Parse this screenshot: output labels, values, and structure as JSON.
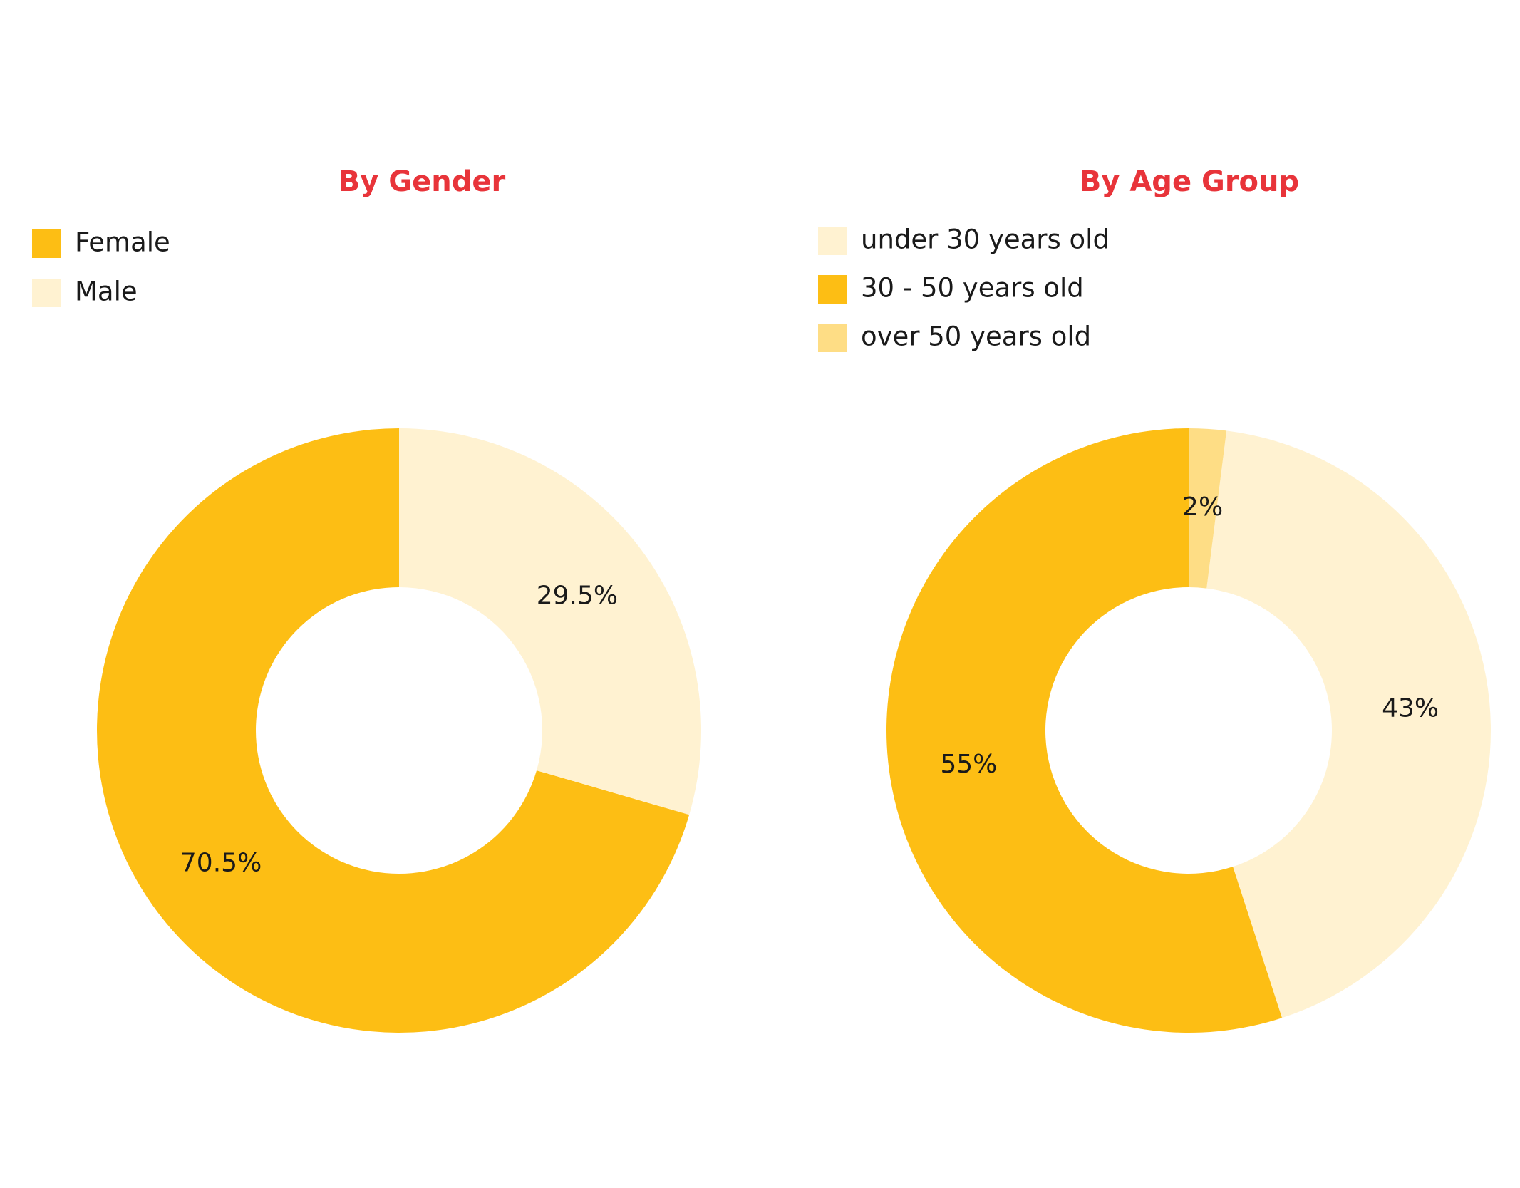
{
  "chart_data": [
    {
      "type": "donut",
      "title": "By Gender",
      "categories": [
        "Female",
        "Male"
      ],
      "values": [
        70.5,
        29.5
      ],
      "value_labels": [
        "70.5%",
        "29.5%"
      ],
      "colors": [
        "#fdbe14",
        "#fff2d1"
      ]
    },
    {
      "type": "donut",
      "title": "By Age Group",
      "categories": [
        "under 30 years old",
        "30 - 50 years old",
        "over 50 years old"
      ],
      "values": [
        43,
        55,
        2
      ],
      "value_labels": [
        "43%",
        "55%",
        "2%"
      ],
      "colors": [
        "#fff2d1",
        "#fdbe14",
        "#fedd85"
      ]
    }
  ]
}
